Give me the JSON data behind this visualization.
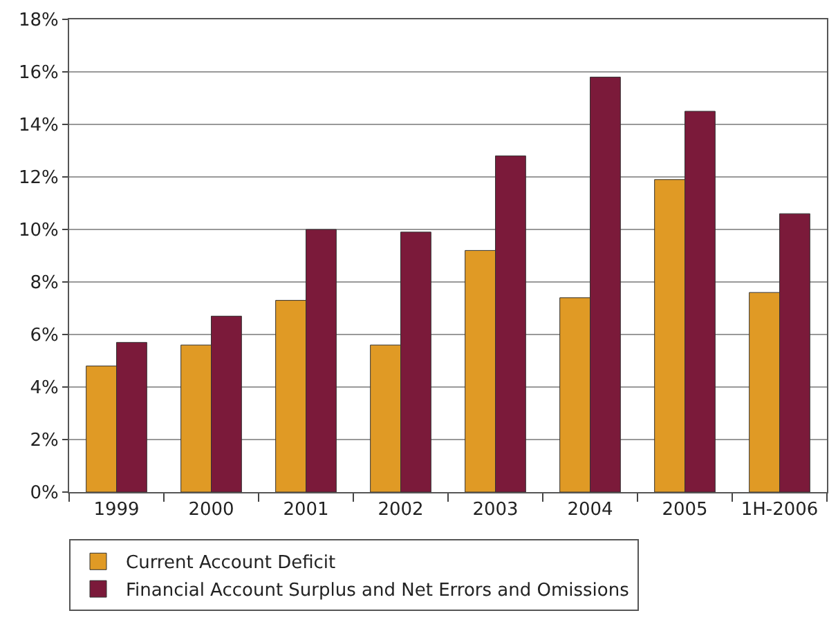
{
  "chart_data": {
    "type": "bar",
    "categories": [
      "1999",
      "2000",
      "2001",
      "2002",
      "2003",
      "2004",
      "2005",
      "1H-2006"
    ],
    "series": [
      {
        "name": "Current Account Deficit",
        "color": "#e09a25",
        "values": [
          4.8,
          5.6,
          7.3,
          5.6,
          9.2,
          7.4,
          11.9,
          7.6
        ]
      },
      {
        "name": "Financial Account Surplus and Net Errors and Omissions",
        "color": "#7b1a3a",
        "values": [
          5.7,
          6.7,
          10.0,
          9.9,
          12.8,
          15.8,
          14.5,
          10.6
        ]
      }
    ],
    "ylim": [
      0,
      18
    ],
    "yticks": [
      {
        "value": 0,
        "label": "0%"
      },
      {
        "value": 2,
        "label": "2%"
      },
      {
        "value": 4,
        "label": "4%"
      },
      {
        "value": 6,
        "label": "6%"
      },
      {
        "value": 8,
        "label": "8%"
      },
      {
        "value": 10,
        "label": "10%"
      },
      {
        "value": 12,
        "label": "12%"
      },
      {
        "value": 14,
        "label": "14%"
      },
      {
        "value": 16,
        "label": "16%"
      },
      {
        "value": 18,
        "label": "18%"
      }
    ],
    "grid": "y",
    "legend": "bottom"
  }
}
